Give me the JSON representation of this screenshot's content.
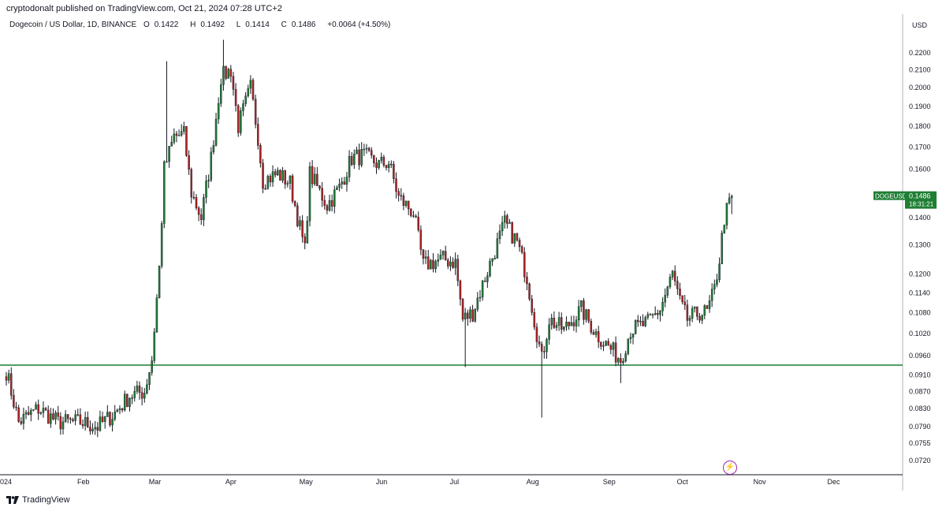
{
  "header": {
    "published_text": "cryptodonalt published on TradingView.com, Oct 21, 2024 07:28 UTC+2"
  },
  "legend": {
    "symbol": "Dogecoin / US Dollar, 1D, BINANCE",
    "open_label": "O",
    "open": "0.1422",
    "high_label": "H",
    "high": "0.1492",
    "low_label": "L",
    "low": "0.1414",
    "close_label": "C",
    "close": "0.1486",
    "change": "+0.0064 (+4.50%)"
  },
  "currency": "USD",
  "price_tag": {
    "symbol": "DOGEUSD",
    "price": "0.1486",
    "countdown": "18:31:21",
    "color": "#1e7e34"
  },
  "footer": {
    "brand": "TradingView"
  },
  "icons": {
    "alert": "lightning-icon",
    "logo": "tradingview-logo-icon"
  },
  "chart_data": {
    "type": "candlestick",
    "scale": "log",
    "x_labels": [
      "2024",
      "Feb",
      "Mar",
      "Apr",
      "May",
      "Jun",
      "Jul",
      "Aug",
      "Sep",
      "Oct",
      "Nov",
      "Dec"
    ],
    "y_ticks": [
      "0.2200",
      "0.2100",
      "0.2000",
      "0.1900",
      "0.1800",
      "0.1700",
      "0.1600",
      "0.1400",
      "0.1300",
      "0.1200",
      "0.1140",
      "0.1080",
      "0.1020",
      "0.0960",
      "0.0910",
      "0.0870",
      "0.0830",
      "0.0790",
      "0.0755",
      "0.0720"
    ],
    "ylim": [
      0.0705,
      0.23
    ],
    "horizontal_line": {
      "value": 0.0935,
      "color": "#1e7e34"
    },
    "colors": {
      "up": "#1e7e34",
      "down": "#b22222",
      "wick": "#131722"
    },
    "anchors": [
      [
        "Jan 1",
        0.092
      ],
      [
        "Jan 6",
        0.08
      ],
      [
        "Jan 14",
        0.083
      ],
      [
        "Jan 22",
        0.08
      ],
      [
        "Jan 31",
        0.08
      ],
      [
        "Feb 7",
        0.079
      ],
      [
        "Feb 14",
        0.082
      ],
      [
        "Feb 20",
        0.086
      ],
      [
        "Feb 26",
        0.087
      ],
      [
        "Feb 29",
        0.095
      ],
      [
        "Mar 3",
        0.122
      ],
      [
        "Mar 5",
        0.16
      ],
      [
        "Mar 9",
        0.175
      ],
      [
        "Mar 13",
        0.176
      ],
      [
        "Mar 16",
        0.15
      ],
      [
        "Mar 20",
        0.14
      ],
      [
        "Mar 24",
        0.165
      ],
      [
        "Mar 28",
        0.206
      ],
      [
        "Apr 1",
        0.21
      ],
      [
        "Apr 4",
        0.18
      ],
      [
        "Apr 9",
        0.2
      ],
      [
        "Apr 12",
        0.175
      ],
      [
        "Apr 14",
        0.155
      ],
      [
        "Apr 20",
        0.158
      ],
      [
        "Apr 25",
        0.154
      ],
      [
        "May 1",
        0.128
      ],
      [
        "May 3",
        0.158
      ],
      [
        "May 10",
        0.145
      ],
      [
        "May 15",
        0.152
      ],
      [
        "May 20",
        0.165
      ],
      [
        "May 25",
        0.166
      ],
      [
        "May 31",
        0.162
      ],
      [
        "Jun 4",
        0.163
      ],
      [
        "Jun 8",
        0.148
      ],
      [
        "Jun 14",
        0.142
      ],
      [
        "Jun 18",
        0.123
      ],
      [
        "Jun 26",
        0.125
      ],
      [
        "Jul 1",
        0.124
      ],
      [
        "Jul 4",
        0.106
      ],
      [
        "Jul 8",
        0.108
      ],
      [
        "Jul 14",
        0.121
      ],
      [
        "Jul 21",
        0.138
      ],
      [
        "Jul 26",
        0.131
      ],
      [
        "Jul 30",
        0.119
      ],
      [
        "Aug 2",
        0.106
      ],
      [
        "Aug 5",
        0.095
      ],
      [
        "Aug 8",
        0.106
      ],
      [
        "Aug 14",
        0.103
      ],
      [
        "Aug 21",
        0.109
      ],
      [
        "Aug 27",
        0.102
      ],
      [
        "Sep 3",
        0.097
      ],
      [
        "Sep 6",
        0.095
      ],
      [
        "Sep 10",
        0.103
      ],
      [
        "Sep 17",
        0.105
      ],
      [
        "Sep 22",
        0.109
      ],
      [
        "Sep 27",
        0.12
      ],
      [
        "Sep 30",
        0.111
      ],
      [
        "Oct 3",
        0.106
      ],
      [
        "Oct 8",
        0.108
      ],
      [
        "Oct 11",
        0.108
      ],
      [
        "Oct 14",
        0.115
      ],
      [
        "Oct 16",
        0.125
      ],
      [
        "Oct 18",
        0.14
      ],
      [
        "Oct 21",
        0.1486
      ]
    ],
    "spikes": [
      {
        "date": "Mar 6",
        "high": 0.215
      },
      {
        "date": "Mar 29",
        "high": 0.228
      },
      {
        "date": "Jul 5",
        "low": 0.093
      },
      {
        "date": "Aug 5",
        "low": 0.081
      },
      {
        "date": "Sep 6",
        "low": 0.089
      }
    ]
  }
}
